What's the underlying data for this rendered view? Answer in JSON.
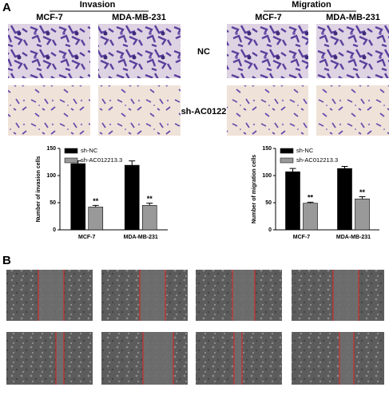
{
  "figure": {
    "panel_a": "A",
    "panel_b": "B",
    "invasion": "Invasion",
    "migration": "Migration",
    "cell_lines": [
      "MCF-7",
      "MDA-MB-231"
    ],
    "rows": [
      "NC",
      "sh-AC0122"
    ]
  },
  "chart_data": [
    {
      "type": "bar",
      "y_label": "Number of invasion cells",
      "categories": [
        "MCF-7",
        "MDA-MB-231"
      ],
      "series": [
        {
          "name": "sh-NC",
          "color": "#000000",
          "values": [
            122,
            119
          ],
          "errors": [
            5,
            8
          ]
        },
        {
          "name": "sh-AC012213.3",
          "color": "#999999",
          "values": [
            42,
            45
          ],
          "errors": [
            3,
            4
          ],
          "significance": [
            "**",
            "**"
          ]
        }
      ],
      "ylim": [
        0,
        150
      ],
      "yticks": [
        0,
        50,
        100,
        150
      ]
    },
    {
      "type": "bar",
      "y_label": "Number of migration cells",
      "categories": [
        "MCF-7",
        "MDA-MB-231"
      ],
      "series": [
        {
          "name": "sh-NC",
          "color": "#000000",
          "values": [
            107,
            113
          ],
          "errors": [
            6,
            4
          ]
        },
        {
          "name": "sh-AC012213.3",
          "color": "#999999",
          "values": [
            49,
            57
          ],
          "errors": [
            2,
            4
          ],
          "significance": [
            "**",
            "**"
          ]
        }
      ],
      "ylim": [
        0,
        150
      ],
      "yticks": [
        0,
        50,
        100,
        150
      ]
    }
  ]
}
